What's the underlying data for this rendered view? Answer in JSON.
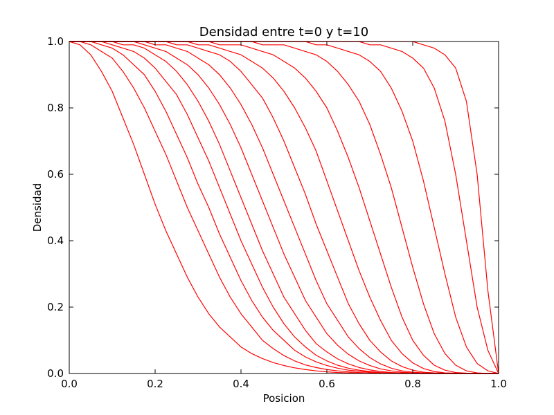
{
  "chart_data": {
    "type": "line",
    "title": "Densidad entre t=0 y t=10",
    "xlabel": "Posicion",
    "ylabel": "Densidad",
    "xlim": [
      0.0,
      1.0
    ],
    "ylim": [
      0.0,
      1.0
    ],
    "x_ticks": [
      "0.0",
      "0.2",
      "0.4",
      "0.6",
      "0.8",
      "1.0"
    ],
    "y_ticks": [
      "0.0",
      "0.2",
      "0.4",
      "0.6",
      "0.8",
      "1.0"
    ],
    "grid": false,
    "legend": "none",
    "series_color": "#ff0000",
    "x": [
      0.0,
      0.025,
      0.05,
      0.075,
      0.1,
      0.125,
      0.15,
      0.175,
      0.2,
      0.225,
      0.25,
      0.275,
      0.3,
      0.325,
      0.35,
      0.375,
      0.4,
      0.425,
      0.45,
      0.475,
      0.5,
      0.525,
      0.55,
      0.575,
      0.6,
      0.625,
      0.65,
      0.675,
      0.7,
      0.725,
      0.75,
      0.775,
      0.8,
      0.825,
      0.85,
      0.875,
      0.9,
      0.925,
      0.95,
      0.975,
      1.0
    ],
    "series": [
      {
        "values": [
          1.0,
          0.99,
          0.96,
          0.91,
          0.85,
          0.77,
          0.69,
          0.6,
          0.51,
          0.43,
          0.36,
          0.29,
          0.23,
          0.18,
          0.14,
          0.11,
          0.08,
          0.06,
          0.045,
          0.033,
          0.024,
          0.017,
          0.012,
          0.008,
          0.005,
          0.003,
          0.002,
          0.001,
          0.0,
          0.0,
          0.0,
          0.0,
          0.0,
          0.0,
          0.0,
          0.0,
          0.0,
          0.0,
          0.0,
          0.0,
          0.0
        ]
      },
      {
        "values": [
          1.0,
          1.0,
          0.99,
          0.97,
          0.95,
          0.91,
          0.86,
          0.8,
          0.73,
          0.66,
          0.58,
          0.5,
          0.43,
          0.36,
          0.29,
          0.23,
          0.18,
          0.14,
          0.1,
          0.075,
          0.054,
          0.038,
          0.026,
          0.018,
          0.012,
          0.008,
          0.005,
          0.003,
          0.002,
          0.001,
          0.0,
          0.0,
          0.0,
          0.0,
          0.0,
          0.0,
          0.0,
          0.0,
          0.0,
          0.0,
          0.0
        ]
      },
      {
        "values": [
          1.0,
          1.0,
          1.0,
          0.99,
          0.98,
          0.96,
          0.93,
          0.9,
          0.85,
          0.79,
          0.72,
          0.65,
          0.57,
          0.5,
          0.42,
          0.35,
          0.28,
          0.22,
          0.17,
          0.13,
          0.1,
          0.07,
          0.05,
          0.035,
          0.024,
          0.016,
          0.01,
          0.007,
          0.004,
          0.002,
          0.001,
          0.0,
          0.0,
          0.0,
          0.0,
          0.0,
          0.0,
          0.0,
          0.0,
          0.0,
          0.0
        ]
      },
      {
        "values": [
          1.0,
          1.0,
          1.0,
          1.0,
          0.99,
          0.98,
          0.97,
          0.95,
          0.92,
          0.88,
          0.84,
          0.78,
          0.71,
          0.64,
          0.56,
          0.48,
          0.4,
          0.33,
          0.26,
          0.2,
          0.15,
          0.11,
          0.08,
          0.055,
          0.038,
          0.025,
          0.016,
          0.01,
          0.006,
          0.003,
          0.002,
          0.001,
          0.0,
          0.0,
          0.0,
          0.0,
          0.0,
          0.0,
          0.0,
          0.0,
          0.0
        ]
      },
      {
        "values": [
          1.0,
          1.0,
          1.0,
          1.0,
          1.0,
          0.99,
          0.99,
          0.98,
          0.96,
          0.94,
          0.91,
          0.87,
          0.82,
          0.76,
          0.69,
          0.61,
          0.53,
          0.45,
          0.37,
          0.3,
          0.23,
          0.18,
          0.13,
          0.09,
          0.065,
          0.044,
          0.029,
          0.018,
          0.011,
          0.006,
          0.003,
          0.002,
          0.001,
          0.0,
          0.0,
          0.0,
          0.0,
          0.0,
          0.0,
          0.0,
          0.0
        ]
      },
      {
        "values": [
          1.0,
          1.0,
          1.0,
          1.0,
          1.0,
          1.0,
          1.0,
          0.99,
          0.98,
          0.97,
          0.95,
          0.93,
          0.9,
          0.86,
          0.81,
          0.75,
          0.68,
          0.6,
          0.52,
          0.44,
          0.36,
          0.29,
          0.22,
          0.17,
          0.12,
          0.085,
          0.058,
          0.038,
          0.024,
          0.014,
          0.008,
          0.004,
          0.002,
          0.001,
          0.0,
          0.0,
          0.0,
          0.0,
          0.0,
          0.0,
          0.0
        ]
      },
      {
        "values": [
          1.0,
          1.0,
          1.0,
          1.0,
          1.0,
          1.0,
          1.0,
          1.0,
          0.99,
          0.99,
          0.98,
          0.97,
          0.95,
          0.93,
          0.9,
          0.86,
          0.81,
          0.75,
          0.68,
          0.6,
          0.52,
          0.44,
          0.36,
          0.28,
          0.21,
          0.16,
          0.11,
          0.075,
          0.048,
          0.029,
          0.016,
          0.008,
          0.004,
          0.002,
          0.001,
          0.0,
          0.0,
          0.0,
          0.0,
          0.0,
          0.0
        ]
      },
      {
        "values": [
          1.0,
          1.0,
          1.0,
          1.0,
          1.0,
          1.0,
          1.0,
          1.0,
          1.0,
          1.0,
          0.99,
          0.99,
          0.98,
          0.97,
          0.96,
          0.94,
          0.91,
          0.87,
          0.83,
          0.77,
          0.7,
          0.62,
          0.54,
          0.45,
          0.37,
          0.29,
          0.21,
          0.15,
          0.1,
          0.065,
          0.038,
          0.021,
          0.01,
          0.004,
          0.002,
          0.001,
          0.0,
          0.0,
          0.0,
          0.0,
          0.0
        ]
      },
      {
        "values": [
          1.0,
          1.0,
          1.0,
          1.0,
          1.0,
          1.0,
          1.0,
          1.0,
          1.0,
          1.0,
          1.0,
          1.0,
          0.99,
          0.99,
          0.98,
          0.97,
          0.96,
          0.94,
          0.92,
          0.89,
          0.85,
          0.8,
          0.74,
          0.67,
          0.58,
          0.49,
          0.4,
          0.31,
          0.23,
          0.16,
          0.1,
          0.06,
          0.032,
          0.015,
          0.006,
          0.002,
          0.001,
          0.0,
          0.0,
          0.0,
          0.0
        ]
      },
      {
        "values": [
          1.0,
          1.0,
          1.0,
          1.0,
          1.0,
          1.0,
          1.0,
          1.0,
          1.0,
          1.0,
          1.0,
          1.0,
          1.0,
          1.0,
          0.99,
          0.99,
          0.99,
          0.98,
          0.97,
          0.96,
          0.94,
          0.92,
          0.89,
          0.85,
          0.8,
          0.73,
          0.65,
          0.56,
          0.46,
          0.36,
          0.26,
          0.17,
          0.1,
          0.055,
          0.025,
          0.01,
          0.003,
          0.001,
          0.0,
          0.0,
          0.0
        ]
      },
      {
        "values": [
          1.0,
          1.0,
          1.0,
          1.0,
          1.0,
          1.0,
          1.0,
          1.0,
          1.0,
          1.0,
          1.0,
          1.0,
          1.0,
          1.0,
          1.0,
          1.0,
          1.0,
          1.0,
          0.99,
          0.99,
          0.99,
          0.98,
          0.97,
          0.96,
          0.94,
          0.91,
          0.87,
          0.82,
          0.75,
          0.66,
          0.56,
          0.44,
          0.32,
          0.21,
          0.12,
          0.06,
          0.025,
          0.008,
          0.002,
          0.0,
          0.0
        ]
      },
      {
        "values": [
          1.0,
          1.0,
          1.0,
          1.0,
          1.0,
          1.0,
          1.0,
          1.0,
          1.0,
          1.0,
          1.0,
          1.0,
          1.0,
          1.0,
          1.0,
          1.0,
          1.0,
          1.0,
          1.0,
          1.0,
          1.0,
          1.0,
          1.0,
          0.99,
          0.99,
          0.98,
          0.97,
          0.96,
          0.94,
          0.91,
          0.86,
          0.79,
          0.7,
          0.58,
          0.44,
          0.3,
          0.17,
          0.08,
          0.03,
          0.008,
          0.0
        ]
      },
      {
        "values": [
          1.0,
          1.0,
          1.0,
          1.0,
          1.0,
          1.0,
          1.0,
          1.0,
          1.0,
          1.0,
          1.0,
          1.0,
          1.0,
          1.0,
          1.0,
          1.0,
          1.0,
          1.0,
          1.0,
          1.0,
          1.0,
          1.0,
          1.0,
          1.0,
          1.0,
          1.0,
          1.0,
          1.0,
          0.99,
          0.99,
          0.98,
          0.97,
          0.95,
          0.92,
          0.86,
          0.76,
          0.6,
          0.4,
          0.2,
          0.07,
          0.0
        ]
      },
      {
        "values": [
          1.0,
          1.0,
          1.0,
          1.0,
          1.0,
          1.0,
          1.0,
          1.0,
          1.0,
          1.0,
          1.0,
          1.0,
          1.0,
          1.0,
          1.0,
          1.0,
          1.0,
          1.0,
          1.0,
          1.0,
          1.0,
          1.0,
          1.0,
          1.0,
          1.0,
          1.0,
          1.0,
          1.0,
          1.0,
          1.0,
          1.0,
          1.0,
          1.0,
          0.99,
          0.98,
          0.96,
          0.92,
          0.82,
          0.6,
          0.25,
          0.0
        ]
      }
    ]
  }
}
